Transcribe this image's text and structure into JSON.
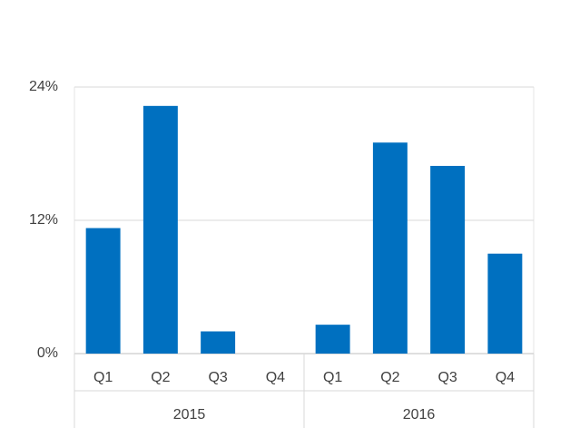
{
  "chart_data": {
    "type": "bar",
    "categories": [
      "Q1",
      "Q2",
      "Q3",
      "Q4",
      "Q1",
      "Q2",
      "Q3",
      "Q4"
    ],
    "category_groups": [
      "2015",
      "2016"
    ],
    "values": [
      11.3,
      22.3,
      2.0,
      0,
      2.6,
      19.0,
      16.9,
      9.0
    ],
    "color": "#0070c0",
    "ylim": [
      0,
      24
    ],
    "yticks": [
      {
        "value": 0,
        "label": "0%"
      },
      {
        "value": 12,
        "label": "12%"
      },
      {
        "value": 24,
        "label": "24%"
      }
    ],
    "grid": true
  }
}
